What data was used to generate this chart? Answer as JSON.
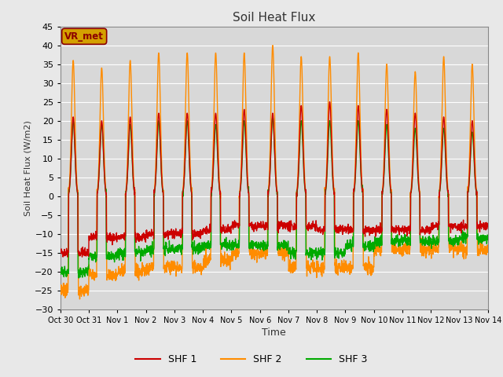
{
  "title": "Soil Heat Flux",
  "ylabel": "Soil Heat Flux (W/m2)",
  "xlabel": "Time",
  "ylim": [
    -30,
    45
  ],
  "yticks": [
    -30,
    -25,
    -20,
    -15,
    -10,
    -5,
    0,
    5,
    10,
    15,
    20,
    25,
    30,
    35,
    40,
    45
  ],
  "colors": {
    "SHF 1": "#CC0000",
    "SHF 2": "#FF8C00",
    "SHF 3": "#00AA00"
  },
  "bg_color": "#D8D8D8",
  "grid_color": "#FFFFFF",
  "fig_bg_color": "#E8E8E8",
  "legend_label": "VR_met",
  "legend_box_facecolor": "#D4A000",
  "legend_box_edgecolor": "#8B0000",
  "legend_text_color": "#8B0000",
  "num_days": 15,
  "tick_labels": [
    "Oct 30",
    "Oct 31",
    "Nov 1",
    "Nov 2",
    "Nov 3",
    "Nov 4",
    "Nov 5",
    "Nov 6",
    "Nov 7",
    "Nov 8",
    "Nov 9",
    "Nov 10",
    "Nov 11",
    "Nov 12",
    "Nov 13",
    "Nov 14"
  ],
  "line_width": 1.0,
  "shf1_day_peaks": [
    21,
    20,
    21,
    22,
    22,
    22,
    23,
    22,
    24,
    25,
    24,
    23,
    22,
    21,
    20
  ],
  "shf1_night_vals": [
    -15,
    -11,
    -11,
    -10,
    -10,
    -9,
    -8,
    -8,
    -8,
    -9,
    -9,
    -9,
    -9,
    -8,
    -8
  ],
  "shf2_day_peaks": [
    36,
    34,
    36,
    38,
    38,
    38,
    38,
    40,
    37,
    37,
    38,
    35,
    33,
    37,
    35
  ],
  "shf2_night_vals": [
    -25,
    -21,
    -20,
    -19,
    -19,
    -17,
    -15,
    -15,
    -19,
    -19,
    -19,
    -14,
    -14,
    -14,
    -14
  ],
  "shf3_day_peaks": [
    20,
    19,
    19,
    20,
    20,
    19,
    20,
    21,
    20,
    20,
    20,
    19,
    18,
    18,
    17
  ],
  "shf3_night_vals": [
    -20,
    -16,
    -15,
    -14,
    -14,
    -13,
    -13,
    -13,
    -15,
    -15,
    -13,
    -12,
    -12,
    -12,
    -11
  ]
}
